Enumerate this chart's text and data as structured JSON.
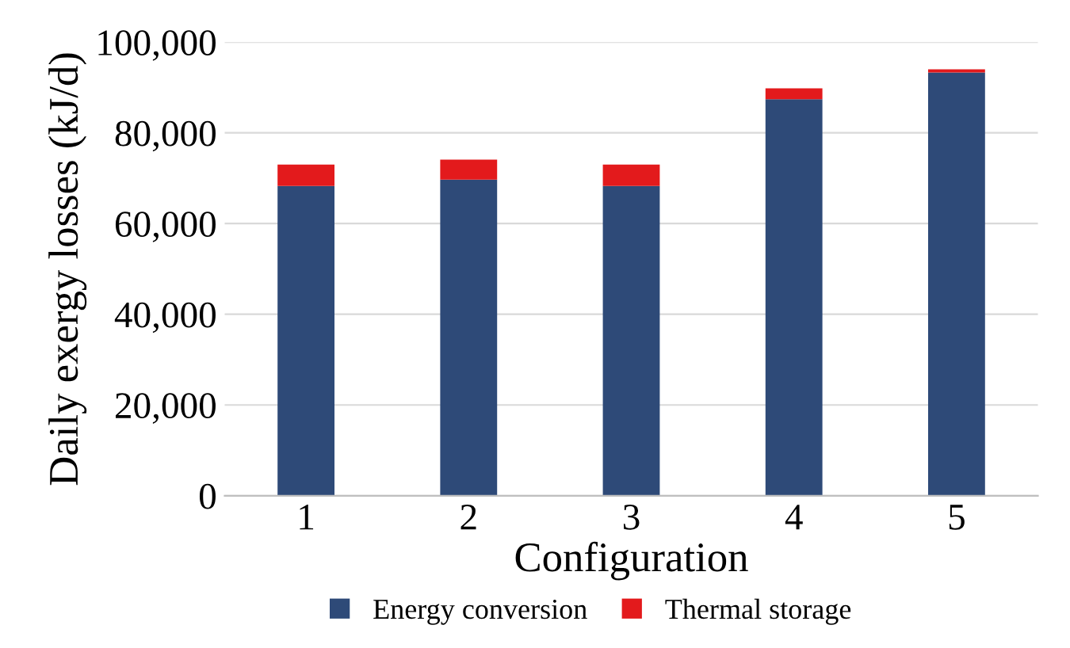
{
  "chart_data": {
    "type": "bar",
    "stacked": true,
    "xlabel": "Configuration",
    "ylabel": "Daily exergy losses (kJ/d)",
    "categories": [
      "1",
      "2",
      "3",
      "4",
      "5"
    ],
    "series": [
      {
        "name": "Energy conversion",
        "color": "#2e4a78",
        "values": [
          68300,
          69700,
          68300,
          87400,
          93300
        ]
      },
      {
        "name": "Thermal storage",
        "color": "#e31a1c",
        "values": [
          4700,
          4400,
          4700,
          2400,
          700
        ]
      }
    ],
    "ylim": [
      0,
      100000
    ],
    "yticks": [
      {
        "value": 0,
        "label": "0"
      },
      {
        "value": 20000,
        "label": "20,000"
      },
      {
        "value": 40000,
        "label": "40,000"
      },
      {
        "value": 60000,
        "label": "60,000"
      },
      {
        "value": 80000,
        "label": "80,000"
      },
      {
        "value": 100000,
        "label": "100,000"
      }
    ],
    "grid": "y",
    "legend": "bottom"
  }
}
